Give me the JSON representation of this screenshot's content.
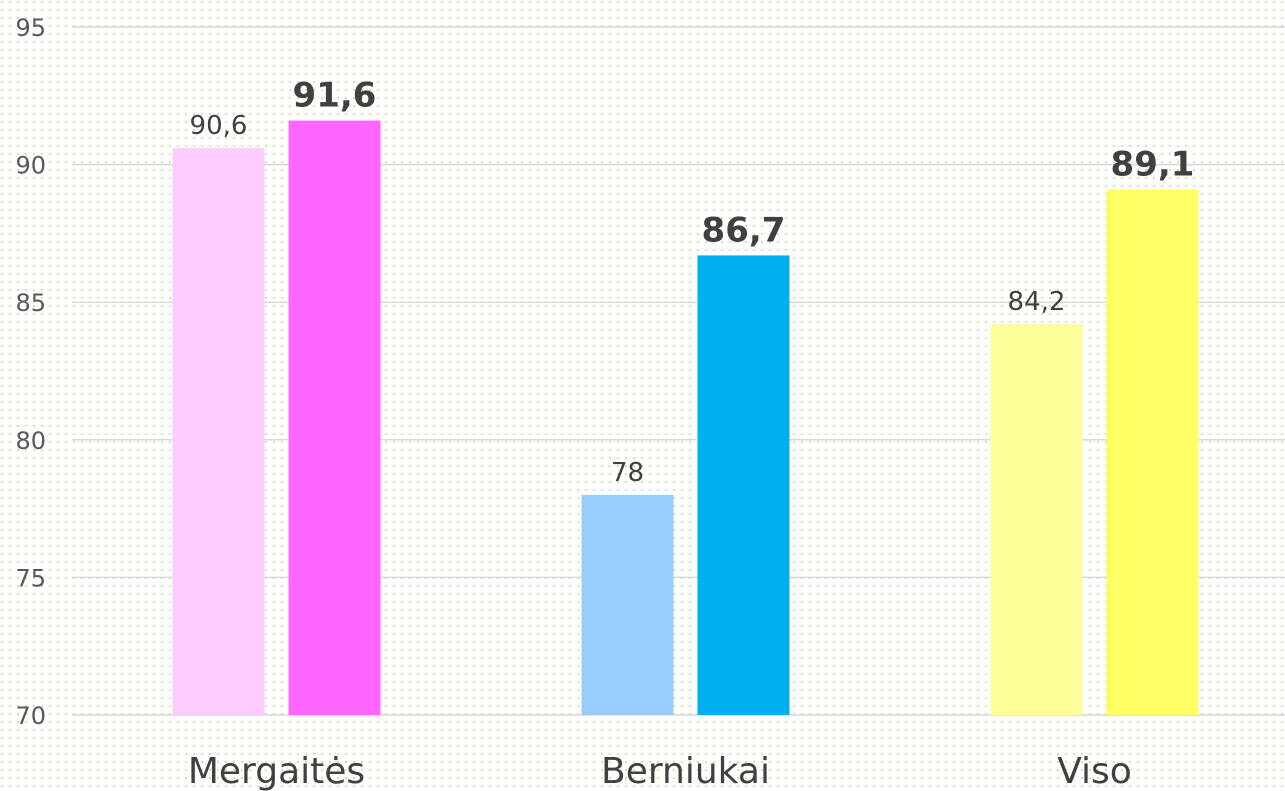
{
  "chart_data": {
    "type": "bar",
    "categories": [
      "Mergaitės",
      "Berniukai",
      "Viso"
    ],
    "series": [
      {
        "colors": [
          "#ffccff",
          "#99ccff",
          "#ffff99"
        ],
        "values": [
          90.6,
          78,
          84.2
        ],
        "value_labels": [
          "90,6",
          "78",
          "84,2"
        ]
      },
      {
        "colors": [
          "#ff66ff",
          "#00b0f0",
          "#ffff66"
        ],
        "values": [
          91.6,
          86.7,
          89.1
        ],
        "value_labels": [
          "91,6",
          "86,7",
          "89,1"
        ]
      }
    ],
    "ylim": [
      70,
      95
    ],
    "yticks": [
      70,
      75,
      80,
      85,
      90,
      95
    ],
    "grid": true
  }
}
